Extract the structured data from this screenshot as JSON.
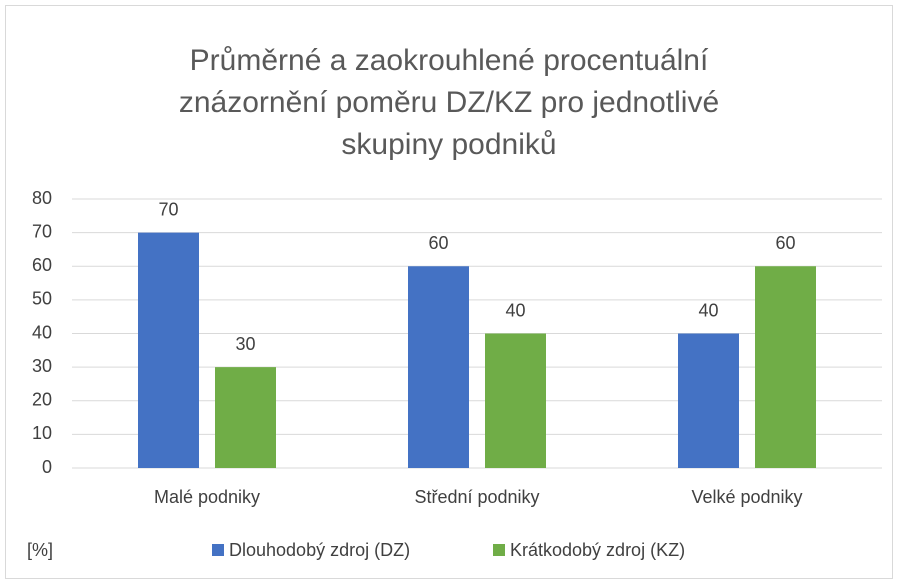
{
  "chart_data": {
    "type": "bar",
    "title": "Průměrné a zaokrouhlené procentuální znázornění poměru DZ/KZ pro jednotlivé skupiny podniků",
    "y_label": "[%]",
    "categories": [
      "Malé podniky",
      "Střední podniky",
      "Velké podniky"
    ],
    "series": [
      {
        "name": "Dlouhodobý zdroj (DZ)",
        "color": "#4472c4",
        "values": [
          70,
          60,
          40
        ]
      },
      {
        "name": "Krátkodobý zdroj (KZ)",
        "color": "#70ad47",
        "values": [
          30,
          40,
          60
        ]
      }
    ],
    "ylim": [
      0,
      80
    ],
    "yticks": [
      0,
      10,
      20,
      30,
      40,
      50,
      60,
      70,
      80
    ],
    "grid": true,
    "legend": "bottom"
  }
}
